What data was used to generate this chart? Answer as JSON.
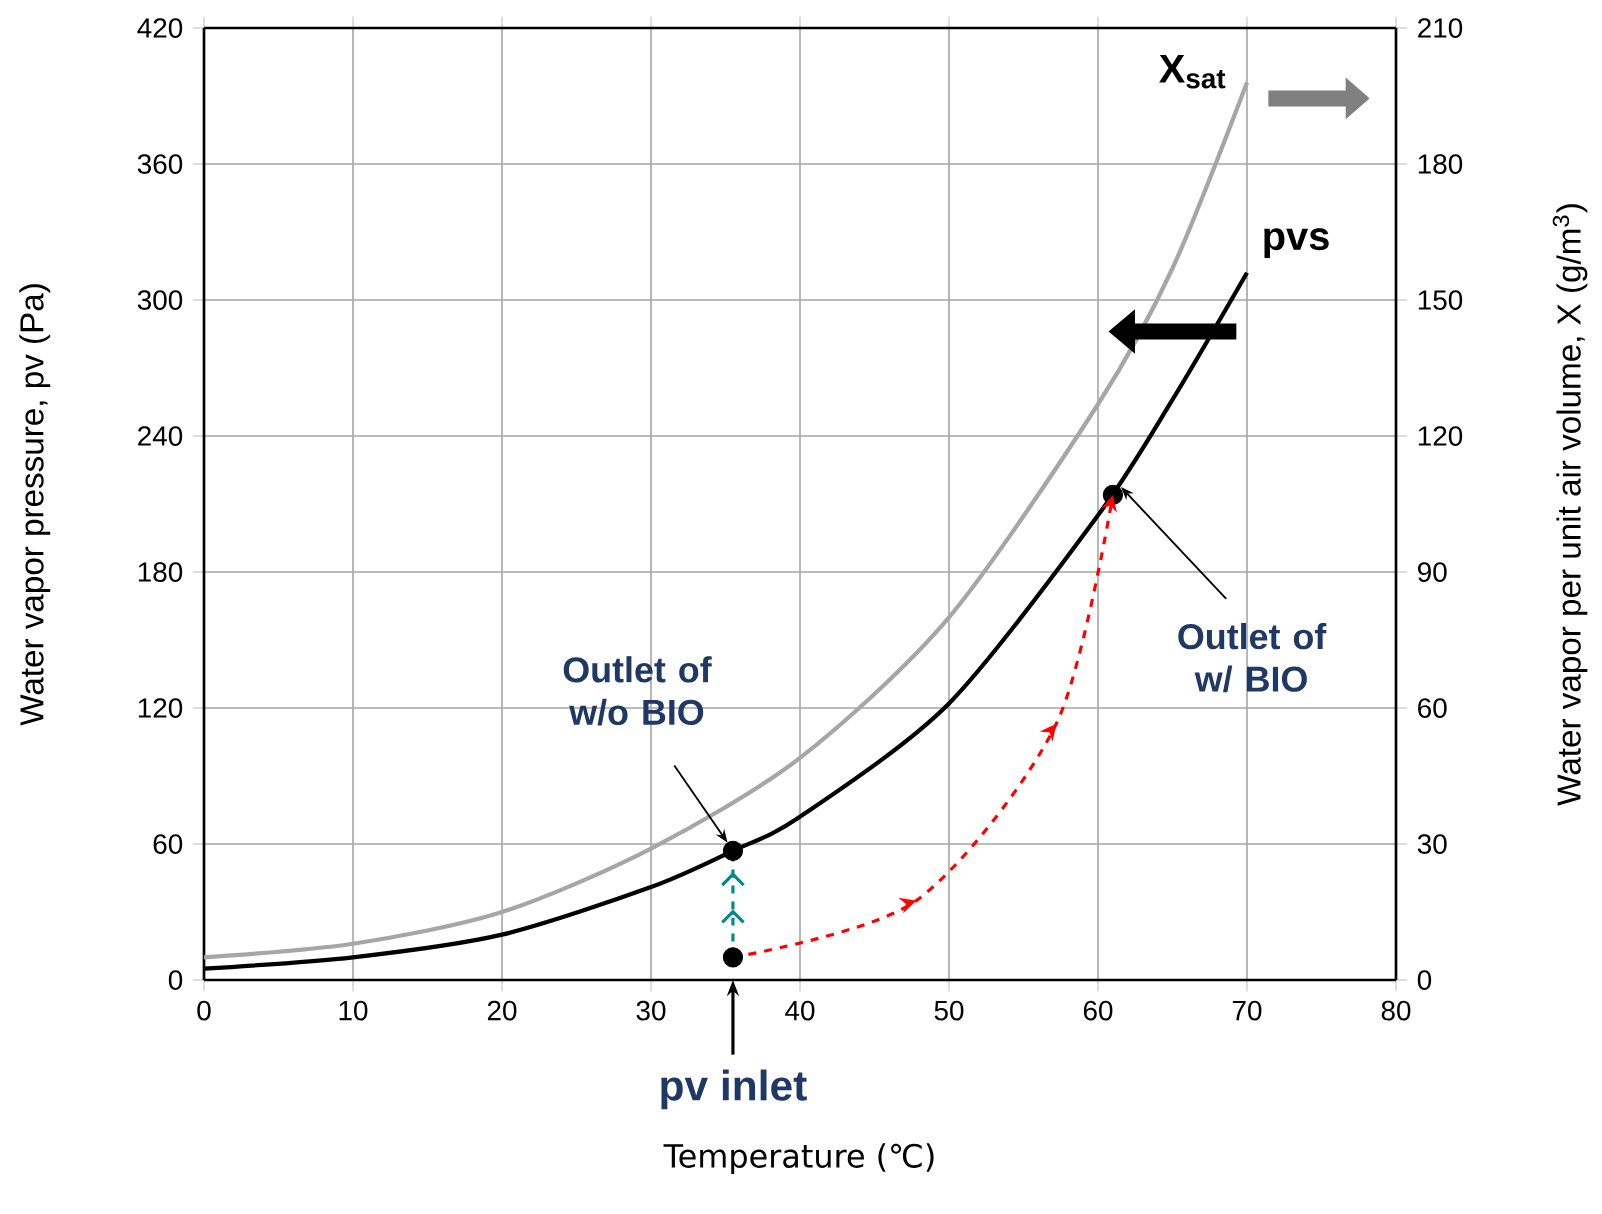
{
  "chart_data": {
    "type": "line",
    "xlabel": "Temperature (℃)",
    "ylabel": "Water vapor pressure, pv  (Pa)",
    "y2label": "Water vapor per unit air volume, X (g/m$^{3}$)",
    "xlim": [
      0,
      80
    ],
    "xticks": [
      0,
      10,
      20,
      30,
      40,
      50,
      60,
      70,
      80
    ],
    "ylim": [
      0,
      420
    ],
    "yticks": [
      0,
      60,
      120,
      180,
      240,
      300,
      360,
      420
    ],
    "y2lim": [
      0,
      210
    ],
    "y2ticks": [
      0,
      30,
      60,
      90,
      120,
      150,
      180,
      210
    ],
    "grid": true,
    "series": [
      {
        "name": "pvs",
        "color": "#000000",
        "line_style": "solid",
        "marker": "none",
        "x": [
          0,
          10,
          20,
          30,
          35.5,
          40,
          50,
          60,
          65,
          70
        ],
        "values": [
          5,
          10,
          20,
          41,
          57,
          72,
          122,
          205,
          256,
          312
        ]
      },
      {
        "name": "X$_{sat}$",
        "axis": "y2",
        "color": "#a6a6a6",
        "line_style": "solid",
        "marker": "none",
        "x": [
          0,
          10,
          20,
          30,
          40,
          50,
          60,
          65,
          70
        ],
        "values": [
          5,
          8,
          15,
          29,
          49,
          80,
          127,
          157,
          198
        ]
      },
      {
        "color": "#ff0000",
        "line_style": "dashed",
        "marker": "none",
        "x": [
          35.5,
          47.8,
          57.2,
          61
        ],
        "values": [
          10,
          35,
          113,
          214
        ]
      },
      {
        "color": "#008b8b",
        "line_style": "dashed",
        "marker": "none",
        "x": [
          35.5,
          35.5
        ],
        "values": [
          10,
          57
        ]
      },
      {
        "type": "scatter",
        "color": "#000000",
        "marker": "circle",
        "x": [
          35.5,
          35.5,
          61
        ],
        "values": [
          10,
          57,
          214
        ]
      }
    ],
    "annotations": [
      {
        "text": "Outlet of w/o BIO",
        "x": 35.5,
        "y": 57
      },
      {
        "text": "Outlet of w/ BIO",
        "x": 61,
        "y": 214
      },
      "pv inlet"
    ]
  }
}
